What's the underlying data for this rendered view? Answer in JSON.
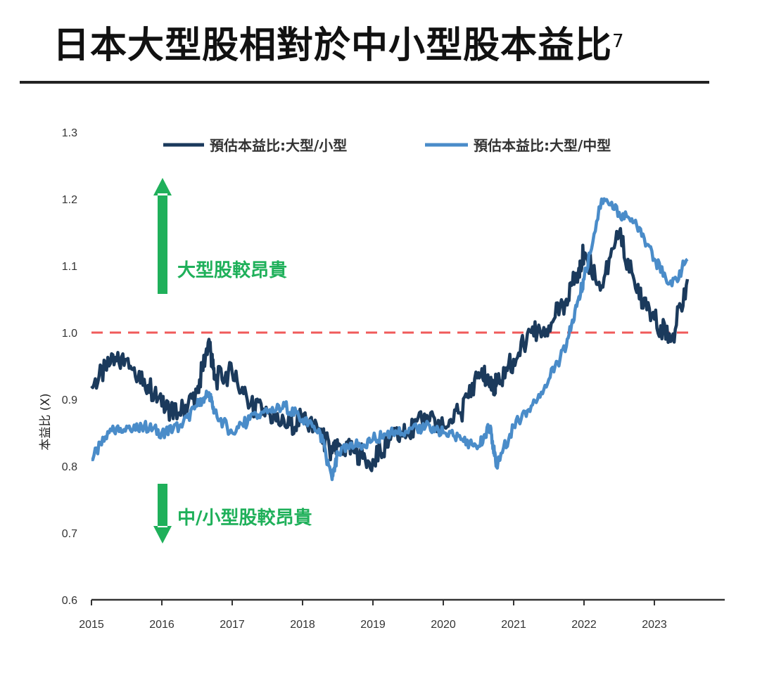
{
  "header": {
    "title": "日本大型股相對於中小型股本益比",
    "footnote_marker": "7"
  },
  "colors": {
    "series_large_small": "#1b3a5c",
    "series_large_mid": "#4a8cc9",
    "reference_line": "#f05a5a",
    "annotation": "#1fb05a",
    "axis": "#333333"
  },
  "chart_data": {
    "type": "line",
    "title": "日本大型股相對於中小型股本益比",
    "xlabel": "",
    "ylabel": "本益比 (X)",
    "ylim": [
      0.6,
      1.3
    ],
    "xlim": [
      2015,
      2024
    ],
    "yticks": [
      "0.6",
      "0.7",
      "0.8",
      "0.9",
      "1.0",
      "1.1",
      "1.2",
      "1.3"
    ],
    "xticks": [
      "2015",
      "2016",
      "2017",
      "2018",
      "2019",
      "2020",
      "2021",
      "2022",
      "2023"
    ],
    "grid": false,
    "legend_position": "top",
    "reference_line": {
      "y": 1.0,
      "style": "dashed",
      "color": "#f05a5a"
    },
    "annotations": [
      {
        "text": "大型股較昂貴",
        "arrow": "up",
        "y": 1.1
      },
      {
        "text": "中/小型股較昂貴",
        "arrow": "down",
        "y": 0.72
      }
    ],
    "x": [
      2015.0,
      2015.25,
      2015.5,
      2015.75,
      2016.0,
      2016.25,
      2016.5,
      2016.67,
      2016.75,
      2017.0,
      2017.25,
      2017.5,
      2017.75,
      2018.0,
      2018.25,
      2018.42,
      2018.5,
      2018.75,
      2019.0,
      2019.25,
      2019.5,
      2019.75,
      2020.0,
      2020.25,
      2020.5,
      2020.67,
      2020.75,
      2021.0,
      2021.25,
      2021.5,
      2021.75,
      2021.92,
      2022.0,
      2022.25,
      2022.5,
      2022.75,
      2023.0,
      2023.25,
      2023.47
    ],
    "series": [
      {
        "name": "預估本益比:大型/小型",
        "values": [
          0.92,
          0.95,
          0.96,
          0.93,
          0.89,
          0.88,
          0.91,
          0.99,
          0.93,
          0.94,
          0.89,
          0.88,
          0.86,
          0.87,
          0.85,
          0.82,
          0.83,
          0.82,
          0.81,
          0.84,
          0.85,
          0.87,
          0.86,
          0.88,
          0.94,
          0.93,
          0.92,
          0.96,
          1.0,
          1.01,
          1.05,
          1.09,
          1.12,
          1.07,
          1.15,
          1.06,
          1.02,
          0.99,
          1.08
        ]
      },
      {
        "name": "預估本益比:大型/中型",
        "values": [
          0.81,
          0.85,
          0.86,
          0.86,
          0.85,
          0.86,
          0.89,
          0.91,
          0.88,
          0.85,
          0.87,
          0.88,
          0.89,
          0.87,
          0.85,
          0.78,
          0.82,
          0.83,
          0.84,
          0.85,
          0.85,
          0.86,
          0.85,
          0.84,
          0.83,
          0.86,
          0.8,
          0.86,
          0.89,
          0.93,
          0.98,
          1.05,
          1.08,
          1.2,
          1.18,
          1.16,
          1.11,
          1.07,
          1.11
        ]
      }
    ]
  },
  "legend": {
    "items": [
      {
        "label": "預估本益比:大型/小型"
      },
      {
        "label": "預估本益比:大型/中型"
      }
    ]
  }
}
